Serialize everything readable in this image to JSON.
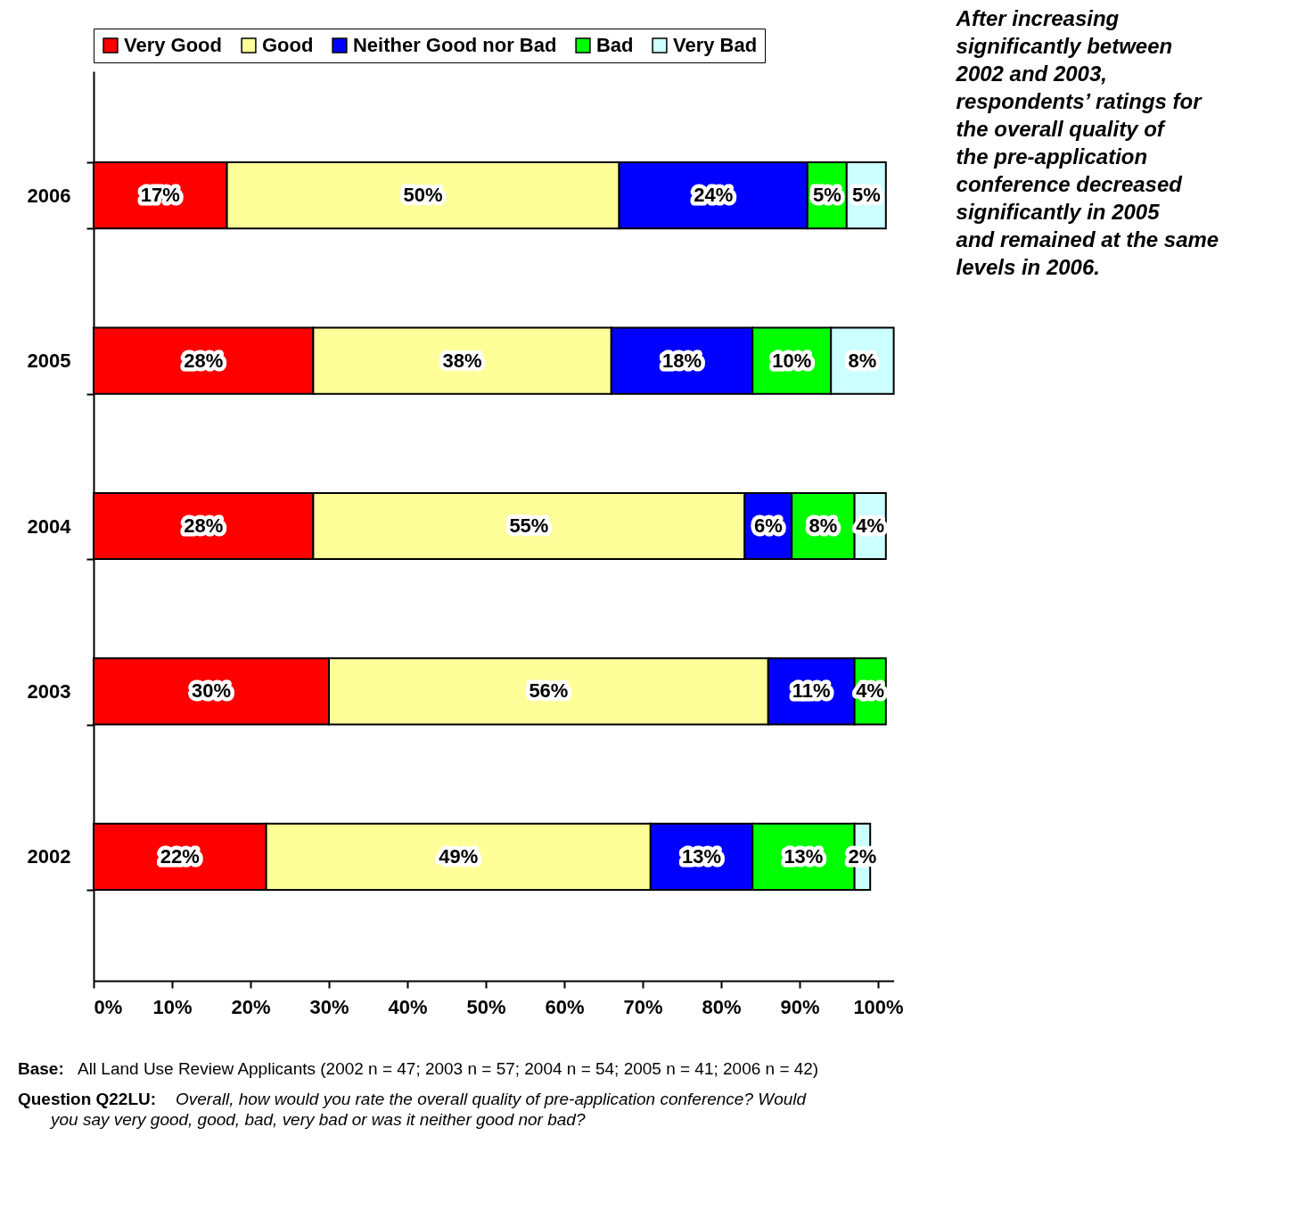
{
  "chart_data": {
    "type": "bar",
    "orientation": "horizontal",
    "stacked": true,
    "categories": [
      "2006",
      "2005",
      "2004",
      "2003",
      "2002"
    ],
    "series": [
      {
        "name": "Very Good",
        "color": "#ff0000",
        "values": [
          17,
          28,
          28,
          30,
          22
        ],
        "value_labels": [
          "17%",
          "28%",
          "28%",
          "30%",
          "22%"
        ]
      },
      {
        "name": "Good",
        "color": "#ffff99",
        "values": [
          50,
          38,
          55,
          56,
          49
        ],
        "value_labels": [
          "50%",
          "38%",
          "55%",
          "56%",
          "49%"
        ]
      },
      {
        "name": "Neither Good nor Bad",
        "color": "#0000ff",
        "values": [
          24,
          18,
          6,
          11,
          13
        ],
        "value_labels": [
          "24%",
          "18%",
          "6%",
          "11%",
          "13%"
        ]
      },
      {
        "name": "Bad",
        "color": "#00ff00",
        "values": [
          5,
          10,
          8,
          4,
          13
        ],
        "value_labels": [
          "5%",
          "10%",
          "8%",
          "4%",
          "13%"
        ]
      },
      {
        "name": "Very Bad",
        "color": "#ccffff",
        "values": [
          5,
          8,
          4,
          null,
          2
        ],
        "value_labels": [
          "5%",
          "8%",
          "4%",
          null,
          "2%"
        ]
      }
    ],
    "xlim": [
      0,
      102
    ],
    "xticks": [
      {
        "value": 0,
        "label": "0%"
      },
      {
        "value": 10,
        "label": "10%"
      },
      {
        "value": 20,
        "label": "20%"
      },
      {
        "value": 30,
        "label": "30%"
      },
      {
        "value": 40,
        "label": "40%"
      },
      {
        "value": 50,
        "label": "50%"
      },
      {
        "value": 60,
        "label": "60%"
      },
      {
        "value": 70,
        "label": "70%"
      },
      {
        "value": 80,
        "label": "80%"
      },
      {
        "value": 90,
        "label": "90%"
      },
      {
        "value": 100,
        "label": "100%"
      }
    ],
    "legend": "top",
    "grid": false,
    "annotations": [
      "After increasing significantly between 2002 and 2003, respondents’ ratings for the overall quality of the pre-application conference decreased significantly in 2005 and remained at the same levels in 2006.",
      "Base:",
      "All Land Use Review Applicants (2002 n = 47; 2003 n = 57; 2004 n = 54; 2005 n = 41; 2006 n = 42)",
      "Question Q22LU:",
      "Overall, how would you rate the overall quality of pre-application conference? Would you say very good, good, bad, very bad or was it neither good nor bad?"
    ]
  }
}
